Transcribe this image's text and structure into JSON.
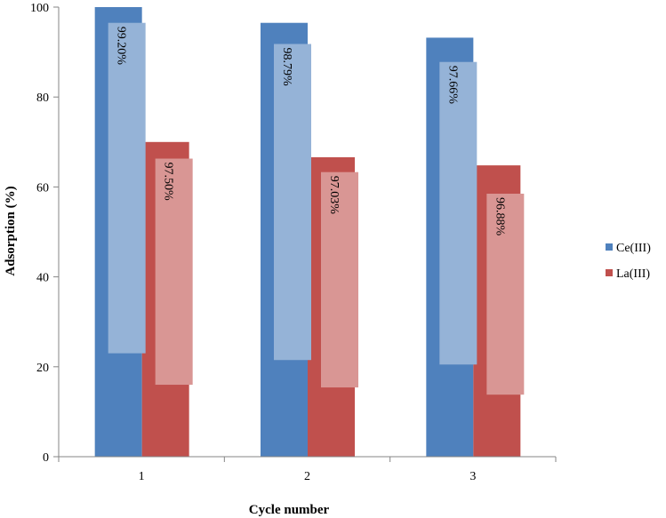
{
  "chart_data": {
    "type": "bar",
    "title": "",
    "xlabel": "Cycle number",
    "ylabel": "Adsorption (%)",
    "ylim": [
      0,
      100
    ],
    "yticks": [
      0,
      20,
      40,
      60,
      80,
      100
    ],
    "categories": [
      "1",
      "2",
      "3"
    ],
    "legend_position": "right",
    "grid": false,
    "series": [
      {
        "name": "Ce(III)",
        "color": "#4F81BD",
        "inner_color": "#95B3D7",
        "values": [
          100,
          96.5,
          93.2
        ],
        "inner_range": [
          [
            23,
            96.5
          ],
          [
            21.5,
            91.8
          ],
          [
            20.5,
            87.8
          ]
        ],
        "labels": [
          "99.20%",
          "98.79%",
          "97.66%"
        ]
      },
      {
        "name": "La(III)",
        "color": "#C0504D",
        "inner_color": "#D99694",
        "values": [
          70,
          66.6,
          64.8
        ],
        "inner_range": [
          [
            16,
            66.3
          ],
          [
            15.4,
            63.3
          ],
          [
            13.8,
            58.5
          ]
        ],
        "labels": [
          "97.50%",
          "97.03%",
          "96.88%"
        ]
      }
    ]
  }
}
